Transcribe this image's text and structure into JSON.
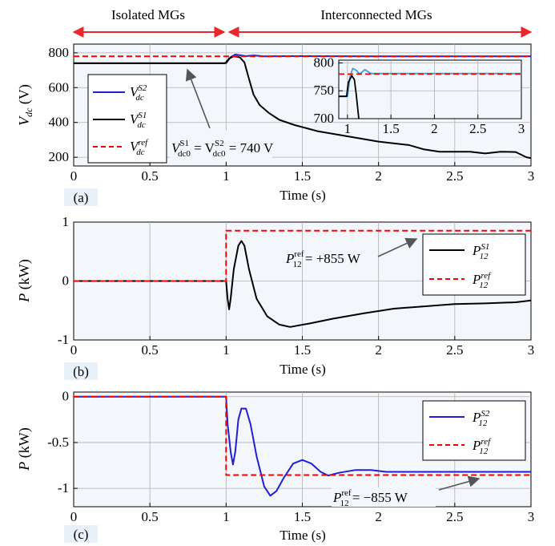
{
  "header": {
    "left_label": "Isolated MGs",
    "right_label": "Interconnected MGs",
    "arrow_color": "#e8262b"
  },
  "colors": {
    "black": "#000000",
    "red": "#ff0000",
    "blue": "#1f1fd6",
    "inset_blue": "#3aa0e0"
  },
  "chart_data": [
    {
      "id": "a",
      "type": "line",
      "panel_label": "(a)",
      "xlabel": "Time (s)",
      "ylabel": "V_dc (V)",
      "xlim": [
        0,
        3
      ],
      "ylim": [
        150,
        850
      ],
      "xticks": [
        0,
        0.5,
        1,
        1.5,
        2,
        2.5,
        3
      ],
      "xtick_labels": [
        "0",
        "0.5",
        "1",
        "1.5",
        "2",
        "2.5",
        "3"
      ],
      "yticks": [
        200,
        400,
        600,
        800
      ],
      "ytick_labels": [
        "200",
        "400",
        "600",
        "800"
      ],
      "grid": true,
      "legend": "left",
      "legend_entries": [
        {
          "base": "V",
          "sup": "S2",
          "sub": "dc"
        },
        {
          "base": "V",
          "sup": "S1",
          "sub": "dc"
        },
        {
          "base": "V",
          "sup": "ref",
          "sub": "dc"
        }
      ],
      "annotation": {
        "text": "V^S1_dc0 = V^S2_dc0 = 740 V",
        "pre": "V",
        "sup1": "S1",
        "sub1": "dc0",
        "mid": " = V",
        "sup2": "S2",
        "sub2": "dc0",
        "post": " = 740 V"
      },
      "series": [
        {
          "name": "V_dc^S2",
          "color": "#1f1fd6",
          "style": "solid",
          "points": [
            [
              0,
              740
            ],
            [
              1.0,
              740
            ],
            [
              1.03,
              775
            ],
            [
              1.06,
              790
            ],
            [
              1.09,
              786
            ],
            [
              1.13,
              781
            ],
            [
              1.18,
              785
            ],
            [
              1.25,
              780
            ],
            [
              1.4,
              781
            ],
            [
              2,
              780
            ],
            [
              3,
              780
            ]
          ]
        },
        {
          "name": "V_dc^S1",
          "color": "#000000",
          "style": "solid",
          "points": [
            [
              0,
              740
            ],
            [
              0.99,
              740
            ],
            [
              1.0,
              745
            ],
            [
              1.02,
              768
            ],
            [
              1.05,
              780
            ],
            [
              1.09,
              774
            ],
            [
              1.12,
              745
            ],
            [
              1.15,
              650
            ],
            [
              1.18,
              560
            ],
            [
              1.22,
              500
            ],
            [
              1.28,
              455
            ],
            [
              1.35,
              415
            ],
            [
              1.45,
              385
            ],
            [
              1.6,
              350
            ],
            [
              1.8,
              320
            ],
            [
              2.0,
              290
            ],
            [
              2.2,
              270
            ],
            [
              2.3,
              245
            ],
            [
              2.4,
              232
            ],
            [
              2.6,
              232
            ],
            [
              2.7,
              222
            ],
            [
              2.8,
              232
            ],
            [
              2.9,
              230
            ],
            [
              2.97,
              200
            ],
            [
              3,
              195
            ]
          ]
        },
        {
          "name": "V_dc^ref",
          "color": "#ff0000",
          "style": "dashed",
          "points": [
            [
              0,
              780
            ],
            [
              3,
              780
            ]
          ]
        }
      ],
      "inset": {
        "xlim": [
          0.9,
          3
        ],
        "ylim": [
          700,
          805
        ],
        "xticks": [
          1,
          1.5,
          2,
          2.5,
          3
        ],
        "xtick_labels": [
          "1",
          "1.5",
          "2",
          "2.5",
          "3"
        ],
        "yticks": [
          700,
          750,
          800
        ],
        "ytick_labels": [
          "700",
          "750",
          "800"
        ],
        "series": [
          {
            "color": "#3aa0e0",
            "style": "solid",
            "points": [
              [
                0.9,
                740
              ],
              [
                1.0,
                740
              ],
              [
                1.03,
                775
              ],
              [
                1.06,
                790
              ],
              [
                1.1,
                787
              ],
              [
                1.14,
                780
              ],
              [
                1.2,
                788
              ],
              [
                1.27,
                781
              ],
              [
                1.45,
                781
              ],
              [
                3,
                781
              ]
            ]
          },
          {
            "color": "#000000",
            "style": "solid",
            "points": [
              [
                0.9,
                740
              ],
              [
                0.99,
                740
              ],
              [
                1.01,
                765
              ],
              [
                1.05,
                777
              ],
              [
                1.08,
                770
              ],
              [
                1.1,
                745
              ],
              [
                1.13,
                700
              ]
            ]
          },
          {
            "color": "#ff0000",
            "style": "dashed",
            "points": [
              [
                0.9,
                780
              ],
              [
                3,
                780
              ]
            ]
          }
        ]
      }
    },
    {
      "id": "b",
      "type": "line",
      "panel_label": "(b)",
      "xlabel": "Time (s)",
      "ylabel": "P (kW)",
      "xlim": [
        0,
        3
      ],
      "ylim": [
        -1,
        1
      ],
      "xticks": [
        0,
        0.5,
        1,
        1.5,
        2,
        2.5,
        3
      ],
      "xtick_labels": [
        "0",
        "0.5",
        "1",
        "1.5",
        "2",
        "2.5",
        "3"
      ],
      "yticks": [
        -1,
        0,
        1
      ],
      "ytick_labels": [
        "-1",
        "0",
        "1"
      ],
      "grid": true,
      "legend": "right",
      "legend_entries": [
        {
          "base": "P",
          "sup": "S1",
          "sub": "12"
        },
        {
          "base": "P",
          "sup": "ref",
          "sub": "12"
        }
      ],
      "annotation": {
        "text": "P^ref_12 = +855 W",
        "pre": "P",
        "sup1": "ref",
        "sub1": "12",
        "post": " = +855 W"
      },
      "series": [
        {
          "name": "P_12^S1",
          "color": "#000000",
          "style": "solid",
          "points": [
            [
              0,
              0
            ],
            [
              1.0,
              0
            ],
            [
              1.01,
              -0.3
            ],
            [
              1.02,
              -0.48
            ],
            [
              1.03,
              -0.3
            ],
            [
              1.05,
              0.2
            ],
            [
              1.08,
              0.6
            ],
            [
              1.1,
              0.68
            ],
            [
              1.12,
              0.6
            ],
            [
              1.15,
              0.2
            ],
            [
              1.2,
              -0.3
            ],
            [
              1.27,
              -0.6
            ],
            [
              1.35,
              -0.74
            ],
            [
              1.42,
              -0.78
            ],
            [
              1.55,
              -0.72
            ],
            [
              1.7,
              -0.64
            ],
            [
              1.9,
              -0.55
            ],
            [
              2.1,
              -0.47
            ],
            [
              2.3,
              -0.43
            ],
            [
              2.5,
              -0.39
            ],
            [
              2.7,
              -0.38
            ],
            [
              2.9,
              -0.36
            ],
            [
              3,
              -0.33
            ]
          ]
        },
        {
          "name": "P_12^ref",
          "color": "#ff0000",
          "style": "dashed",
          "points": [
            [
              0,
              0
            ],
            [
              1.0,
              0
            ],
            [
              1.0,
              0.855
            ],
            [
              3,
              0.855
            ]
          ]
        }
      ]
    },
    {
      "id": "c",
      "type": "line",
      "panel_label": "(c)",
      "xlabel": "Time (s)",
      "ylabel": "P (kW)",
      "xlim": [
        0,
        3
      ],
      "ylim": [
        -1.2,
        0.05
      ],
      "xticks": [
        0,
        0.5,
        1,
        1.5,
        2,
        2.5,
        3
      ],
      "xtick_labels": [
        "0",
        "0.5",
        "1",
        "1.5",
        "2",
        "2.5",
        "3"
      ],
      "yticks": [
        -1,
        -0.5,
        0
      ],
      "ytick_labels": [
        "-1",
        "-0.5",
        "0"
      ],
      "grid": true,
      "legend": "right",
      "legend_entries": [
        {
          "base": "P",
          "sup": "S2",
          "sub": "12"
        },
        {
          "base": "P",
          "sup": "ref",
          "sub": "12"
        }
      ],
      "annotation": {
        "text": "P^ref_12 = −855 W",
        "pre": "P",
        "sup1": "ref",
        "sub1": "12",
        "post": " = −855 W"
      },
      "series": [
        {
          "name": "P_12^S2",
          "color": "#1f1fd6",
          "style": "solid",
          "points": [
            [
              0,
              0
            ],
            [
              1.0,
              0
            ],
            [
              1.01,
              -0.3
            ],
            [
              1.03,
              -0.6
            ],
            [
              1.045,
              -0.74
            ],
            [
              1.06,
              -0.6
            ],
            [
              1.08,
              -0.25
            ],
            [
              1.1,
              -0.13
            ],
            [
              1.13,
              -0.13
            ],
            [
              1.16,
              -0.3
            ],
            [
              1.2,
              -0.65
            ],
            [
              1.25,
              -0.98
            ],
            [
              1.29,
              -1.08
            ],
            [
              1.33,
              -1.03
            ],
            [
              1.38,
              -0.88
            ],
            [
              1.44,
              -0.73
            ],
            [
              1.5,
              -0.69
            ],
            [
              1.56,
              -0.73
            ],
            [
              1.62,
              -0.82
            ],
            [
              1.67,
              -0.86
            ],
            [
              1.74,
              -0.83
            ],
            [
              1.85,
              -0.8
            ],
            [
              1.95,
              -0.8
            ],
            [
              2.05,
              -0.82
            ],
            [
              2.15,
              -0.82
            ],
            [
              3,
              -0.82
            ]
          ]
        },
        {
          "name": "P_12^ref",
          "color": "#ff0000",
          "style": "dashed",
          "points": [
            [
              0,
              0
            ],
            [
              1.0,
              0
            ],
            [
              1.0,
              -0.855
            ],
            [
              3,
              -0.855
            ]
          ]
        }
      ]
    }
  ]
}
